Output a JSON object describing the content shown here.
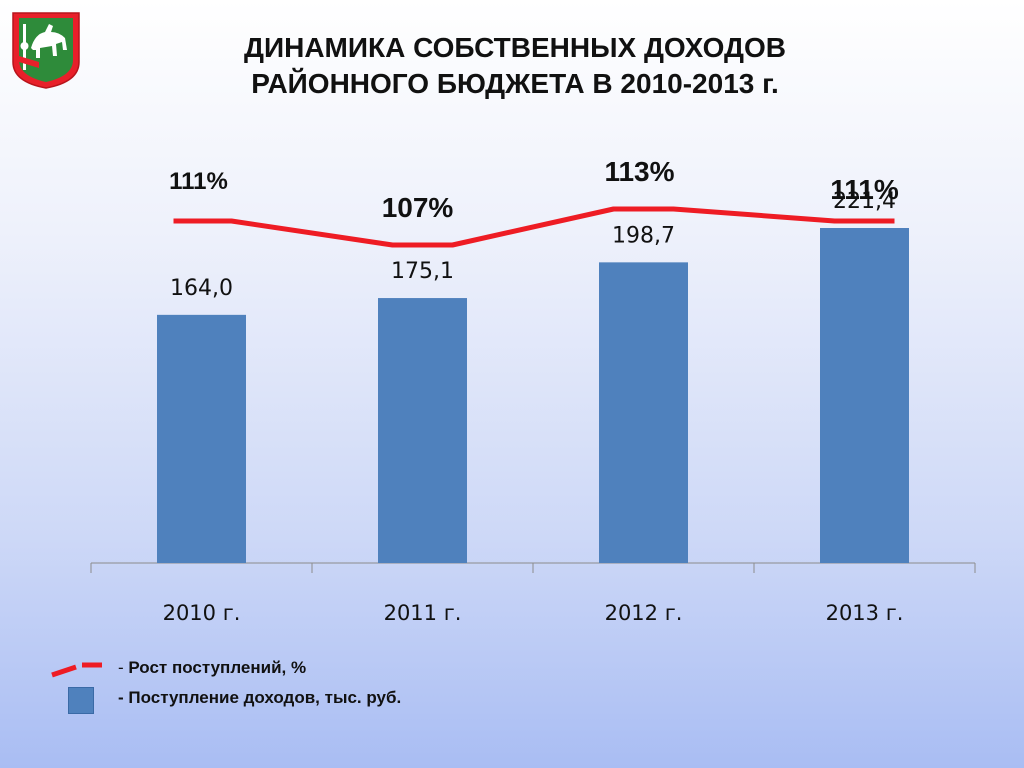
{
  "title": {
    "line1": "ДИНАМИКА СОБСТВЕННЫХ ДОХОДОВ",
    "line2": "РАЙОННОГО БЮДЖЕТА В 2010-2013 г."
  },
  "colors": {
    "bar": "#4f81bd",
    "line": "#ee1c24",
    "emblem_field": "#2e8b3a",
    "emblem_border": "#e8202a"
  },
  "emblem": {
    "icon": "horse-coat-of-arms-icon"
  },
  "chart_data": {
    "type": "bar",
    "categories": [
      "2010 г.",
      "2011 г.",
      "2012 г.",
      "2013 г."
    ],
    "series": [
      {
        "name": "Поступление доходов, тыс. руб.",
        "type": "bar",
        "values": [
          164.0,
          175.1,
          198.7,
          221.4
        ],
        "labels": [
          "164,0",
          "175,1",
          "198,7",
          "221,4"
        ]
      },
      {
        "name": "Рост поступлений, %",
        "type": "line",
        "values": [
          111,
          107,
          113,
          111
        ],
        "labels": [
          "111%",
          "107%",
          "113%",
          "111%"
        ]
      }
    ],
    "title": "ДИНАМИКА СОБСТВЕННЫХ ДОХОДОВ РАЙОННОГО БЮДЖЕТА В 2010-2013 г.",
    "xlabel": "",
    "ylabel": "",
    "grid": false,
    "legend": "bottom-left"
  },
  "legend": {
    "line_prefix": "- ",
    "line_label": "Рост поступлений, %",
    "bar_label": "- Поступление доходов, тыс. руб."
  }
}
